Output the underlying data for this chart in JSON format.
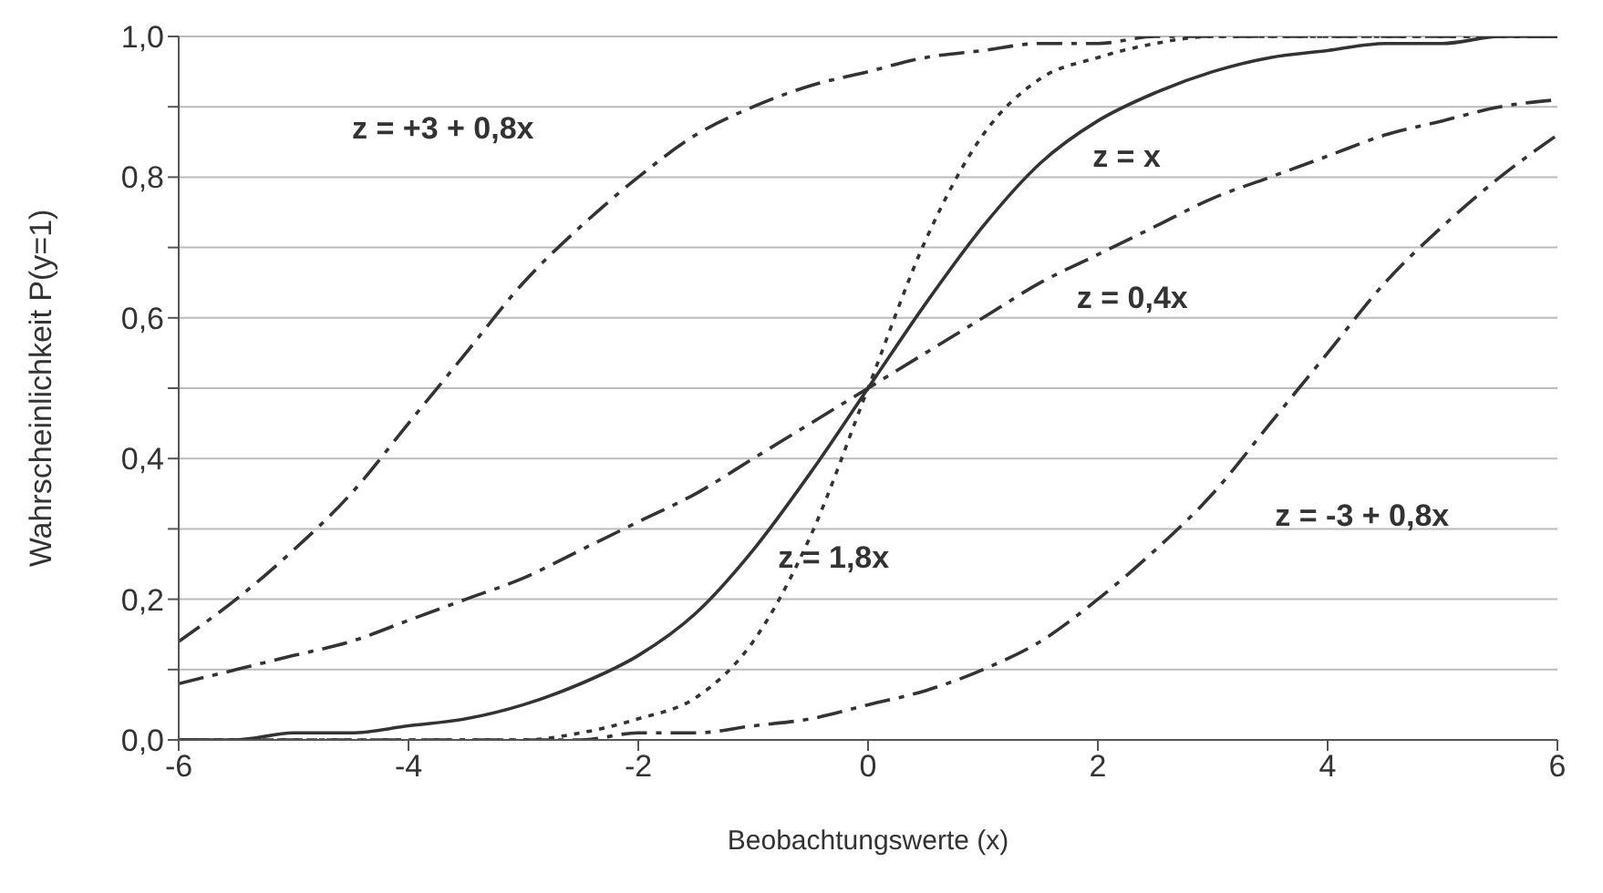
{
  "chart_data": {
    "type": "line",
    "xlabel": "Beobachtungswerte (x)",
    "ylabel": "Wahrscheinlichkeit P(y=1)",
    "x": [
      -6,
      -5.5,
      -5,
      -4.5,
      -4,
      -3.5,
      -3,
      -2.5,
      -2,
      -1.5,
      -1,
      -0.5,
      0,
      0.5,
      1,
      1.5,
      2,
      2.5,
      3,
      3.5,
      4,
      4.5,
      5,
      5.5,
      6
    ],
    "series": [
      {
        "name": "z = +3 + 0,8x",
        "color": "#333333",
        "line_style": "dashed",
        "values": [
          0.14,
          0.2,
          0.27,
          0.35,
          0.45,
          0.55,
          0.65,
          0.73,
          0.8,
          0.86,
          0.9,
          0.93,
          0.95,
          0.97,
          0.98,
          0.99,
          0.99,
          1,
          1,
          1,
          1,
          1,
          1,
          1,
          1
        ]
      },
      {
        "name": "z = x",
        "color": "#333333",
        "line_style": "solid",
        "values": [
          0,
          0,
          0.01,
          0.01,
          0.02,
          0.03,
          0.05,
          0.08,
          0.12,
          0.18,
          0.27,
          0.38,
          0.5,
          0.62,
          0.73,
          0.82,
          0.88,
          0.92,
          0.95,
          0.97,
          0.98,
          0.99,
          0.99,
          1,
          1
        ]
      },
      {
        "name": "z = 0,4x",
        "color": "#333333",
        "line_style": "dashed",
        "values": [
          0.08,
          0.1,
          0.12,
          0.14,
          0.17,
          0.2,
          0.23,
          0.27,
          0.31,
          0.35,
          0.4,
          0.45,
          0.5,
          0.55,
          0.6,
          0.65,
          0.69,
          0.73,
          0.77,
          0.8,
          0.83,
          0.86,
          0.88,
          0.9,
          0.91
        ]
      },
      {
        "name": "z = 1,8x",
        "color": "#333333",
        "line_style": "dotted",
        "values": [
          0,
          0,
          0,
          0,
          0,
          0,
          0,
          0.01,
          0.03,
          0.06,
          0.14,
          0.29,
          0.5,
          0.71,
          0.86,
          0.94,
          0.97,
          0.99,
          1,
          1,
          1,
          1,
          1,
          1,
          1
        ]
      },
      {
        "name": "z = -3 + 0,8x",
        "color": "#333333",
        "line_style": "dashed",
        "values": [
          0,
          0,
          0,
          0,
          0,
          0,
          0,
          0,
          0.01,
          0.01,
          0.02,
          0.03,
          0.05,
          0.07,
          0.1,
          0.14,
          0.2,
          0.27,
          0.35,
          0.45,
          0.55,
          0.65,
          0.73,
          0.8,
          0.86
        ]
      }
    ],
    "xlim": [
      -6,
      6
    ],
    "xticks": [
      -6,
      -4,
      -2,
      0,
      2,
      4,
      6
    ],
    "ylim": [
      0,
      1
    ],
    "yticks": [
      {
        "value": 0,
        "label": "0,0"
      },
      {
        "value": 0.1,
        "label": null
      },
      {
        "value": 0.2,
        "label": "0,2"
      },
      {
        "value": 0.3,
        "label": null
      },
      {
        "value": 0.4,
        "label": "0,4"
      },
      {
        "value": 0.5,
        "label": null
      },
      {
        "value": 0.6,
        "label": "0,6"
      },
      {
        "value": 0.7,
        "label": null
      },
      {
        "value": 0.8,
        "label": "0,8"
      },
      {
        "value": 0.9,
        "label": null
      },
      {
        "value": 1,
        "label": "1,0"
      }
    ],
    "grid": "y",
    "legend": false,
    "marker": "none"
  }
}
